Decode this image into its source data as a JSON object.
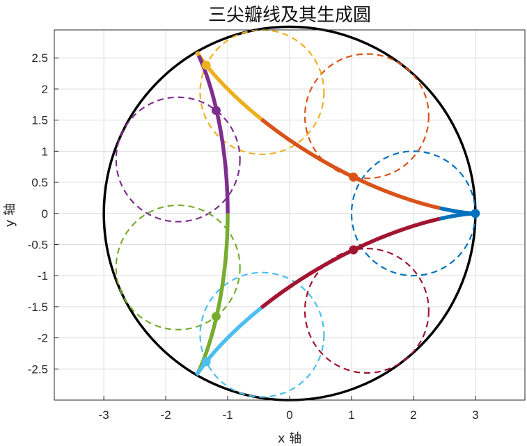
{
  "chart_data": {
    "type": "line",
    "title": "三尖瓣线及其生成圆",
    "xlabel": "x 轴",
    "ylabel": "y 轴",
    "xlim": [
      -3.8,
      3.8
    ],
    "ylim": [
      -3.0,
      2.95
    ],
    "x_ticks": [
      "-3",
      "-2",
      "-1",
      "0",
      "1",
      "2",
      "3"
    ],
    "y_ticks": [
      "2.5",
      "2",
      "1.5",
      "1",
      "0.5",
      "0",
      "-0.5",
      "-1",
      "-1.5",
      "-2",
      "-2.5"
    ],
    "x_tick_values": [
      -3,
      -2,
      -1,
      0,
      1,
      2,
      3
    ],
    "y_tick_values": [
      2.5,
      2,
      1.5,
      1,
      0.5,
      0,
      -0.5,
      -1,
      -1.5,
      -2,
      -2.5
    ],
    "grid": true,
    "fixed_circle": {
      "center": [
        0,
        0
      ],
      "radius": 3,
      "color": "#000000"
    },
    "deltoid": {
      "R": 3,
      "r": 1
    },
    "colors": [
      "#0072BD",
      "#D95319",
      "#EDB120",
      "#7E2F8E",
      "#77AC30",
      "#4DBEEE",
      "#A2142F"
    ],
    "rolling_circles": [
      {
        "center": [
          2.0,
          0.0
        ],
        "radius": 1,
        "color": "#0072BD",
        "point": [
          3.0,
          0.0
        ]
      },
      {
        "center": [
          1.247,
          1.564
        ],
        "radius": 1,
        "color": "#D95319",
        "point": [
          1.031,
          0.585
        ]
      },
      {
        "center": [
          -0.445,
          1.95
        ],
        "radius": 1,
        "color": "#EDB120",
        "point": [
          -1.347,
          2.383
        ]
      },
      {
        "center": [
          -1.802,
          0.868
        ],
        "radius": 1,
        "color": "#7E2F8E",
        "point": [
          -1.187,
          1.656
        ]
      },
      {
        "center": [
          -1.802,
          -0.868
        ],
        "radius": 1,
        "color": "#77AC30",
        "point": [
          -1.187,
          -1.656
        ]
      },
      {
        "center": [
          -0.445,
          -1.95
        ],
        "radius": 1,
        "color": "#4DBEEE",
        "point": [
          -1.347,
          -2.383
        ]
      },
      {
        "center": [
          1.247,
          -1.564
        ],
        "radius": 1,
        "color": "#A2142F",
        "point": [
          1.031,
          -0.585
        ]
      }
    ],
    "curve_segments": [
      {
        "color": "#0072BD",
        "theta_start": -0.449,
        "theta_end": 0.449
      },
      {
        "color": "#D95319",
        "theta_start": 0.449,
        "theta_end": 1.346
      },
      {
        "color": "#EDB120",
        "theta_start": 1.346,
        "theta_end": 2.244
      },
      {
        "color": "#7E2F8E",
        "theta_start": 2.244,
        "theta_end": 3.1416
      },
      {
        "color": "#77AC30",
        "theta_start": 3.1416,
        "theta_end": 4.039
      },
      {
        "color": "#4DBEEE",
        "theta_start": 4.039,
        "theta_end": 4.937
      },
      {
        "color": "#A2142F",
        "theta_start": 4.937,
        "theta_end": 5.834
      }
    ]
  }
}
